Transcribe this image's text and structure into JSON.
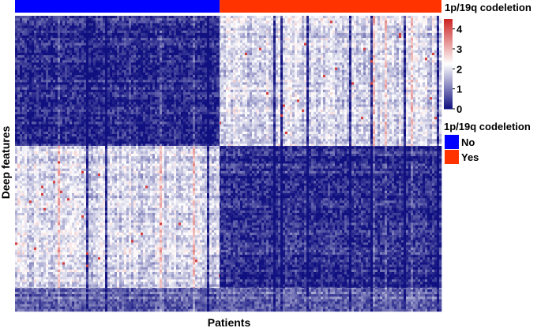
{
  "chart_data": {
    "type": "heatmap",
    "title": "",
    "xlabel": "Patients",
    "ylabel": "Deep features",
    "annotation": {
      "label": "1p/19q codeletion",
      "groups": [
        {
          "name": "No",
          "color": "#0000ff",
          "fraction": 0.48
        },
        {
          "name": "Yes",
          "color": "#ff3300",
          "fraction": 0.52
        }
      ]
    },
    "colorscale": {
      "min": 0,
      "max": 4.5,
      "ticks": [
        0,
        1,
        2,
        3,
        4
      ],
      "tick_labels": [
        "0",
        "1",
        "2",
        "3",
        "4"
      ],
      "colors": [
        "#101080",
        "#ffffff",
        "#cc2222"
      ]
    },
    "blocks": [
      {
        "patient_group": "No",
        "feature_fraction": [
          0.0,
          0.44
        ],
        "mean_value": 0.3
      },
      {
        "patient_group": "Yes",
        "feature_fraction": [
          0.0,
          0.44
        ],
        "mean_value": 1.9
      },
      {
        "patient_group": "No",
        "feature_fraction": [
          0.44,
          0.92
        ],
        "mean_value": 1.9
      },
      {
        "patient_group": "Yes",
        "feature_fraction": [
          0.44,
          0.92
        ],
        "mean_value": 0.3
      },
      {
        "patient_group": "No",
        "feature_fraction": [
          0.92,
          1.0
        ],
        "mean_value": 0.8
      },
      {
        "patient_group": "Yes",
        "feature_fraction": [
          0.92,
          1.0
        ],
        "mean_value": 0.8
      }
    ],
    "legend": {
      "title": "1p/19q codeletion",
      "items": [
        {
          "label": "No",
          "color": "#0000ff"
        },
        {
          "label": "Yes",
          "color": "#ff3300"
        }
      ]
    }
  }
}
